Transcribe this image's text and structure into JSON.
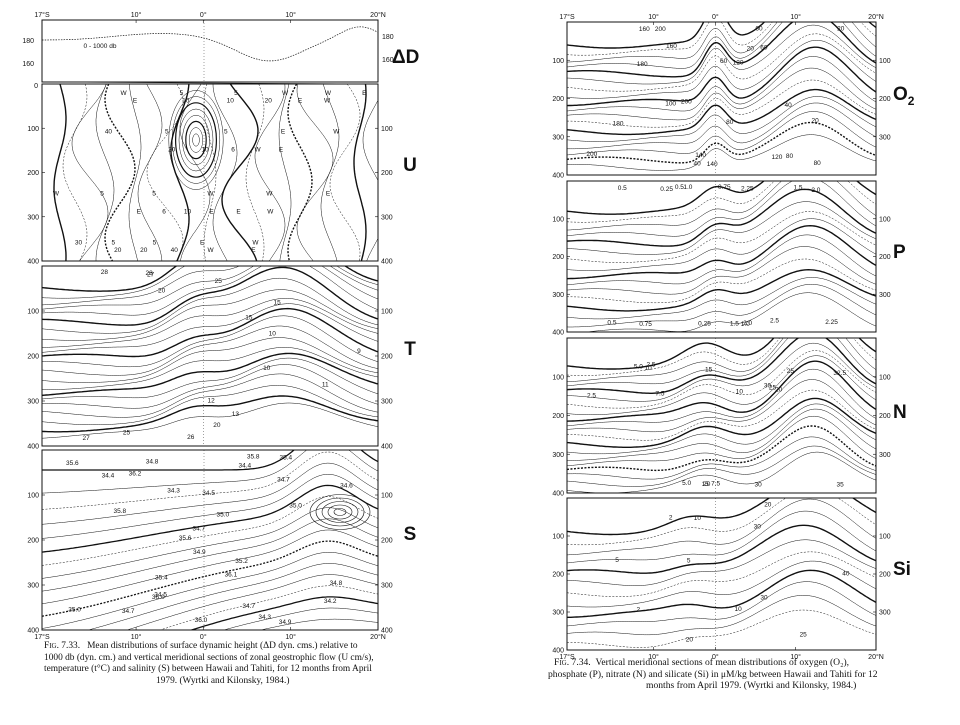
{
  "left_figure": {
    "top_axis": [
      "17°S",
      "10°",
      "0°",
      "10°",
      "20°N"
    ],
    "bottom_axis": [
      "17°S",
      "10°",
      "0°",
      "10°",
      "20°N"
    ],
    "panels": [
      {
        "letter": "ΔD",
        "y_ticks": [
          "180",
          "160"
        ],
        "right_ticks": [
          "180",
          "160"
        ],
        "note": "0 - 1000 db"
      },
      {
        "letter": "U",
        "y_ticks": [
          "0",
          "100",
          "200",
          "300",
          "400"
        ],
        "right_ticks": [
          "100",
          "200",
          "300",
          "400"
        ],
        "labels": [
          "E",
          "W",
          "E",
          "W",
          "30",
          "20",
          "40",
          "20",
          "10",
          "5",
          "6",
          "5",
          "5",
          "10",
          "5",
          "20",
          "10",
          "5",
          "10",
          "5",
          "5",
          "6",
          "5",
          "40",
          "20",
          "W",
          "E",
          "W",
          "E",
          "W",
          "E",
          "W",
          "E",
          "W",
          "E",
          "W",
          "W",
          "E",
          "W",
          "E",
          "W",
          "E",
          "W",
          "E"
        ]
      },
      {
        "letter": "T",
        "y_ticks": [
          "100",
          "200",
          "300",
          "400"
        ],
        "right_ticks": [
          "100",
          "200",
          "300",
          "400"
        ],
        "labels": [
          "28",
          "27",
          "28",
          "26",
          "27",
          "25",
          "25",
          "20",
          "20",
          "13",
          "15",
          "12",
          "15",
          "11",
          "10",
          "10",
          "9"
        ]
      },
      {
        "letter": "S",
        "y_ticks": [
          "100",
          "200",
          "300",
          "400"
        ],
        "right_ticks": [
          "100",
          "200",
          "300",
          "400"
        ],
        "labels": [
          "35.8",
          "35.6",
          "35.4",
          "35.0",
          "34.3",
          "34.4",
          "36.0",
          "34.5",
          "36.2",
          "34.5",
          "34.7",
          "36.1",
          "34.8",
          "35.0",
          "36.0",
          "34.9",
          "35.8",
          "35.6",
          "34.9",
          "34.7",
          "35.4",
          "35.2",
          "34.3",
          "35.0",
          "34.4",
          "34.8",
          "34.7",
          "34.6",
          "34.7",
          "34.2"
        ]
      }
    ],
    "caption_lines": [
      {
        "fig": "Fig. 7.33.",
        "text": "Mean distributions of surface dynamic height (ΔD dyn. cms.) relative to"
      },
      {
        "text": "1000 db (dyn. cm.) and vertical meridional sections of zonal geostrophic flow (U cm/s),"
      },
      {
        "text": "temperature (t°C) and salinity (S) between Hawaii and Tahiti, for 12 months from April"
      },
      {
        "text": "1979. (Wyrtki and Kilonsky, 1984.)"
      }
    ]
  },
  "right_figure": {
    "top_axis": [
      "17°S",
      "10°",
      "0°",
      "10°",
      "20°N"
    ],
    "bottom_axis": [
      "17°S",
      "10°",
      "0°",
      "10°",
      "20°N"
    ],
    "panels": [
      {
        "letter": "O",
        "subscript": "2",
        "y_ticks": [
          "100",
          "200",
          "300",
          "400"
        ],
        "right_ticks": [
          "100",
          "200",
          "300"
        ],
        "labels": [
          "200",
          "200",
          "180",
          "200",
          "180",
          "160",
          "140",
          "160",
          "140",
          "120",
          "100",
          "80",
          "60",
          "40",
          "60",
          "80",
          "60",
          "40",
          "20",
          "20",
          "80",
          "20",
          "120"
        ]
      },
      {
        "letter": "P",
        "y_ticks": [
          "100",
          "200",
          "300",
          "400"
        ],
        "right_ticks": [
          "100",
          "200",
          "300"
        ],
        "labels": [
          "0.25",
          "0.5",
          "0.5",
          "0.25",
          "0.5",
          "0.75",
          "0.75",
          "1.0",
          "1.0",
          "1.5",
          "1.5",
          "2.0",
          "2.25",
          "2.25",
          "2.0",
          "2.5"
        ]
      },
      {
        "letter": "N",
        "y_ticks": [
          "100",
          "200",
          "300",
          "400"
        ],
        "right_ticks": [
          "100",
          "200",
          "300"
        ],
        "labels": [
          "2.5",
          "2.5",
          "5.0",
          "5.0",
          "7.5",
          "7.5",
          "10",
          "10",
          "15",
          "15",
          "20",
          "20",
          "25",
          "25",
          "30",
          "32.5",
          "30",
          "35"
        ]
      },
      {
        "letter": "Si",
        "y_ticks": [
          "100",
          "200",
          "300",
          "400"
        ],
        "right_ticks": [
          "100",
          "200",
          "300"
        ],
        "labels": [
          "2",
          "2",
          "5",
          "5",
          "10",
          "10",
          "20",
          "20",
          "25",
          "30",
          "30",
          "40"
        ]
      }
    ],
    "caption_lines": [
      {
        "fig": "Fig. 7.34.",
        "text": "Vertical meridional sections of mean distributions of oxygen (O₂),"
      },
      {
        "text": "phosphate (P), nitrate (N) and silicate (Si) in μM/kg between Hawaii and Tahiti for 12"
      },
      {
        "text": "months from April 1979. (Wyrtki and Kilonsky, 1984.)"
      }
    ]
  }
}
